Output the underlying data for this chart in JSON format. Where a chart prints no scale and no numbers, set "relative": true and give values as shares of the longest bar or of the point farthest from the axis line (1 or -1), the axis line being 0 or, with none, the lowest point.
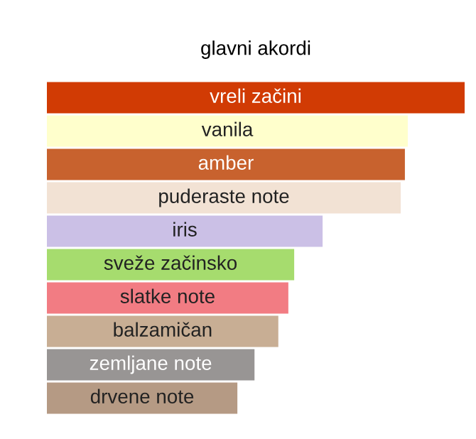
{
  "chart_data": {
    "type": "bar",
    "orientation": "horizontal",
    "relative": true,
    "title": "glavni akordi",
    "categories": [
      "vreli začini",
      "vanila",
      "amber",
      "puderaste note",
      "iris",
      "sveže začinsko",
      "slatke note",
      "balzamičan",
      "zemljane note",
      "drvene note"
    ],
    "values": [
      1,
      0.864,
      0.857,
      0.847,
      0.66,
      0.592,
      0.578,
      0.554,
      0.497,
      0.456
    ],
    "colors": [
      "#d13b04",
      "#ffffcc",
      "#c8622e",
      "#f2e2d4",
      "#cbc0e6",
      "#a6dc6e",
      "#f27c83",
      "#c8ae94",
      "#989594",
      "#b59a84"
    ],
    "legend": false
  }
}
